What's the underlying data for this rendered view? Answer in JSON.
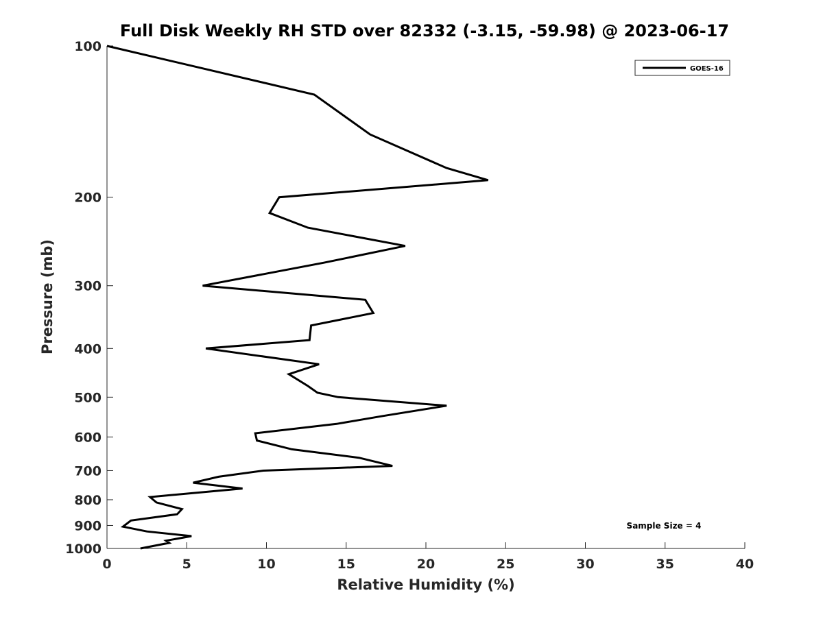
{
  "chart_data": {
    "type": "line",
    "title": "Full Disk Weekly RH STD over 82332 (-3.15, -59.98) @ 2023-06-17",
    "xlabel": "Relative Humidity (%)",
    "ylabel": "Pressure (mb)",
    "xlim": [
      0,
      40
    ],
    "ylim": [
      100,
      1000
    ],
    "yscale": "log",
    "y_reversed": true,
    "grid": false,
    "xticks": [
      0,
      5,
      10,
      15,
      20,
      25,
      30,
      35,
      40
    ],
    "yticks": [
      100,
      200,
      300,
      400,
      500,
      600,
      700,
      800,
      900,
      1000
    ],
    "legend_position": "top-right",
    "series": [
      {
        "name": "GOES-16",
        "color": "#000000",
        "rh": [
          0.0,
          13.0,
          16.5,
          21.3,
          23.9,
          10.8,
          10.2,
          12.6,
          18.7,
          13.6,
          6.0,
          16.2,
          16.7,
          12.8,
          12.7,
          6.2,
          13.3,
          11.4,
          12.6,
          13.2,
          14.5,
          21.3,
          17.3,
          14.4,
          9.3,
          9.4,
          11.6,
          15.8,
          17.9,
          9.8,
          7.0,
          5.4,
          8.5,
          2.7,
          3.1,
          4.7,
          4.4,
          1.5,
          1.0,
          2.5,
          5.3,
          3.7,
          3.9,
          2.1
        ],
        "pressure": [
          100,
          125,
          150,
          175,
          185,
          200,
          215,
          230,
          250,
          270,
          300,
          320,
          340,
          360,
          385,
          400,
          430,
          450,
          475,
          490,
          500,
          520,
          545,
          565,
          590,
          610,
          635,
          660,
          685,
          700,
          720,
          740,
          760,
          790,
          810,
          835,
          855,
          880,
          905,
          925,
          945,
          965,
          975,
          1000
        ]
      }
    ],
    "annotations": [
      "Sample Size = 4"
    ]
  }
}
